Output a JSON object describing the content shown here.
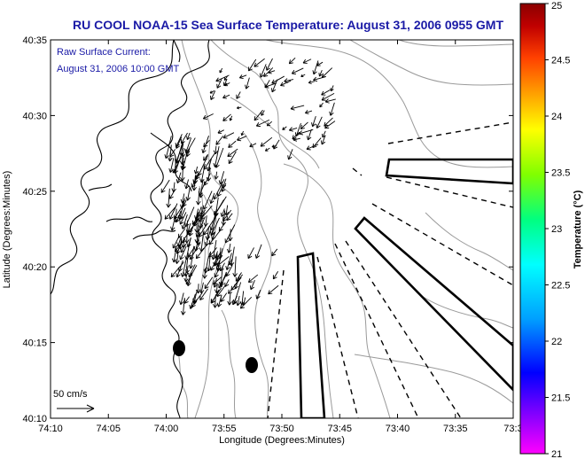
{
  "title": "RU COOL  NOAA-15  Sea Surface Temperature:  August 31, 2006 0955 GMT",
  "annotation": {
    "line1": "Raw Surface Current:",
    "line2": "August 31, 2006 10:00 GMT"
  },
  "scale_label": "50 cm/s",
  "xlabel": "Longitude (Degrees:Minutes)",
  "ylabel": "Latitude (Degrees:Minutes)",
  "x_ticks": [
    "74:10",
    "74:05",
    "74:00",
    "73:55",
    "73:50",
    "73:45",
    "73:40",
    "73:35",
    "73:3"
  ],
  "y_ticks": [
    "40:35",
    "40:30",
    "40:25",
    "40:20",
    "40:15",
    "40:10"
  ],
  "colorbar": {
    "label": "Temperature (°C)",
    "range": [
      21,
      25
    ],
    "ticks": [
      "25",
      "24.5",
      "24",
      "23.5",
      "23",
      "22.5",
      "22",
      "21.5",
      "21"
    ],
    "colors": [
      "#ff00ff",
      "#8000ff",
      "#0000ff",
      "#00a0ff",
      "#00ffff",
      "#00ff80",
      "#80ff00",
      "#ffff00",
      "#ffa000",
      "#ff4000",
      "#c00000",
      "#8b0000"
    ]
  }
}
